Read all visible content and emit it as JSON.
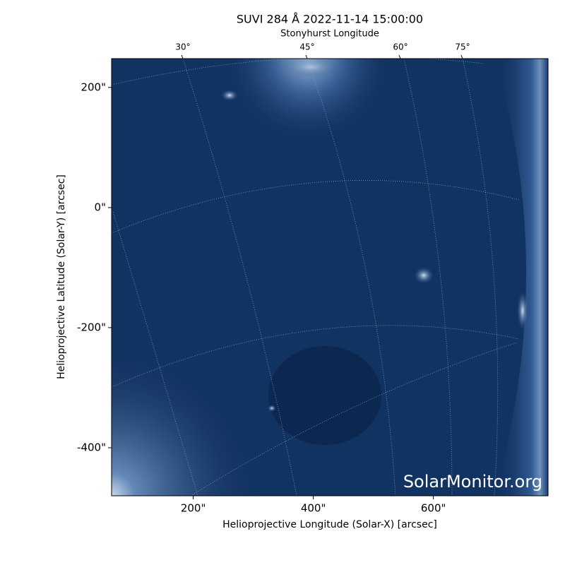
{
  "chart_data": {
    "type": "image",
    "title": "SUVI 284 Å 2022-11-14 15:00:00",
    "xlabel": "Helioprojective Longitude (Solar-X) [arcsec]",
    "ylabel": "Helioprojective Latitude (Solar-Y) [arcsec]",
    "top_axis_label": "Stonyhurst Longitude",
    "xlim": [
      64,
      791
    ],
    "ylim": [
      -480,
      248
    ],
    "xticks": [
      {
        "value": 200,
        "label": "200\""
      },
      {
        "value": 400,
        "label": "400\""
      },
      {
        "value": 600,
        "label": "600\""
      }
    ],
    "yticks": [
      {
        "value": 200,
        "label": "200\""
      },
      {
        "value": 0,
        "label": "0\""
      },
      {
        "value": -200,
        "label": "-200\""
      },
      {
        "value": -400,
        "label": "-400\""
      }
    ],
    "top_ticks": [
      {
        "value": 30,
        "label": "30°"
      },
      {
        "value": 45,
        "label": "45°"
      },
      {
        "value": 60,
        "label": "60°"
      },
      {
        "value": 75,
        "label": "75°"
      }
    ],
    "watermark": "SolarMonitor.org"
  }
}
